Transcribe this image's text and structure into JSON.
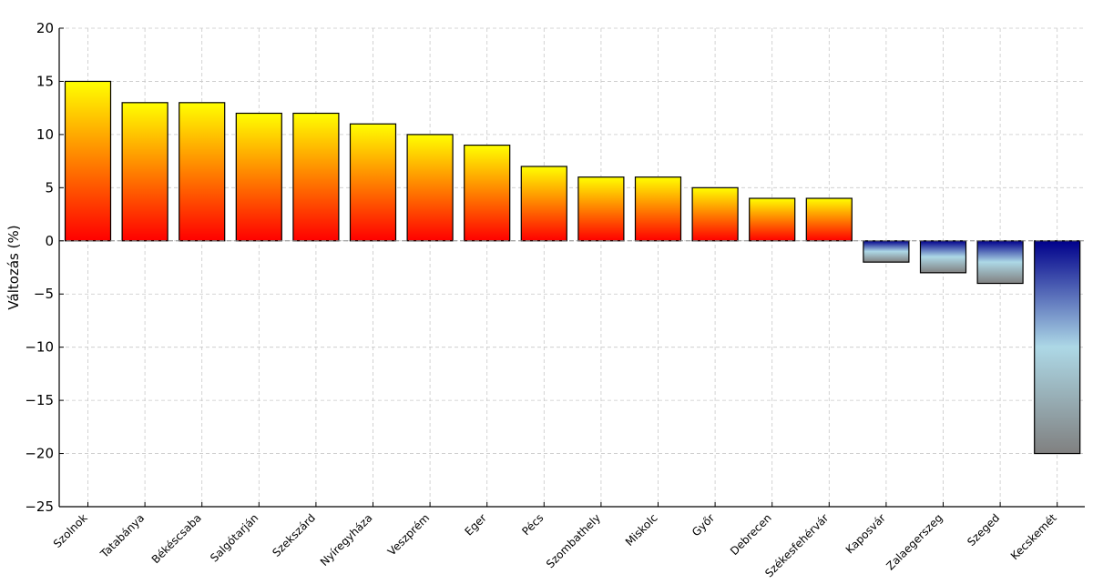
{
  "chart_data": {
    "type": "bar",
    "title": "",
    "xlabel": "",
    "ylabel": "Változás (%)",
    "ylim": [
      -25,
      20
    ],
    "yticks": [
      20,
      15,
      10,
      5,
      0,
      -5,
      -10,
      -15,
      -20,
      -25
    ],
    "ytick_labels": [
      "20",
      "15",
      "10",
      "5",
      "0",
      "−5",
      "−10",
      "−15",
      "−20",
      "−25"
    ],
    "grid": true,
    "categories": [
      "Szolnok",
      "Tatabánya",
      "Békéscsaba",
      "Salgótarján",
      "Szekszárd",
      "Nyíregyháza",
      "Veszprém",
      "Eger",
      "Pécs",
      "Szombathely",
      "Miskolc",
      "Győr",
      "Debrecen",
      "Székesfehérvár",
      "Kaposvár",
      "Zalaegerszeg",
      "Szeged",
      "Kecskemét"
    ],
    "values": [
      15,
      13,
      13,
      12,
      12,
      11,
      10,
      9,
      7,
      6,
      6,
      5,
      4,
      4,
      -2,
      -3,
      -4,
      -20
    ],
    "colors": {
      "positive_top": "#ffff00",
      "positive_bottom": "#ff0000",
      "negative_top": "#00008b",
      "negative_mid": "#add8e6",
      "negative_bottom": "#808080",
      "bar_edge": "#000000",
      "grid": "#c8c8c8"
    }
  }
}
